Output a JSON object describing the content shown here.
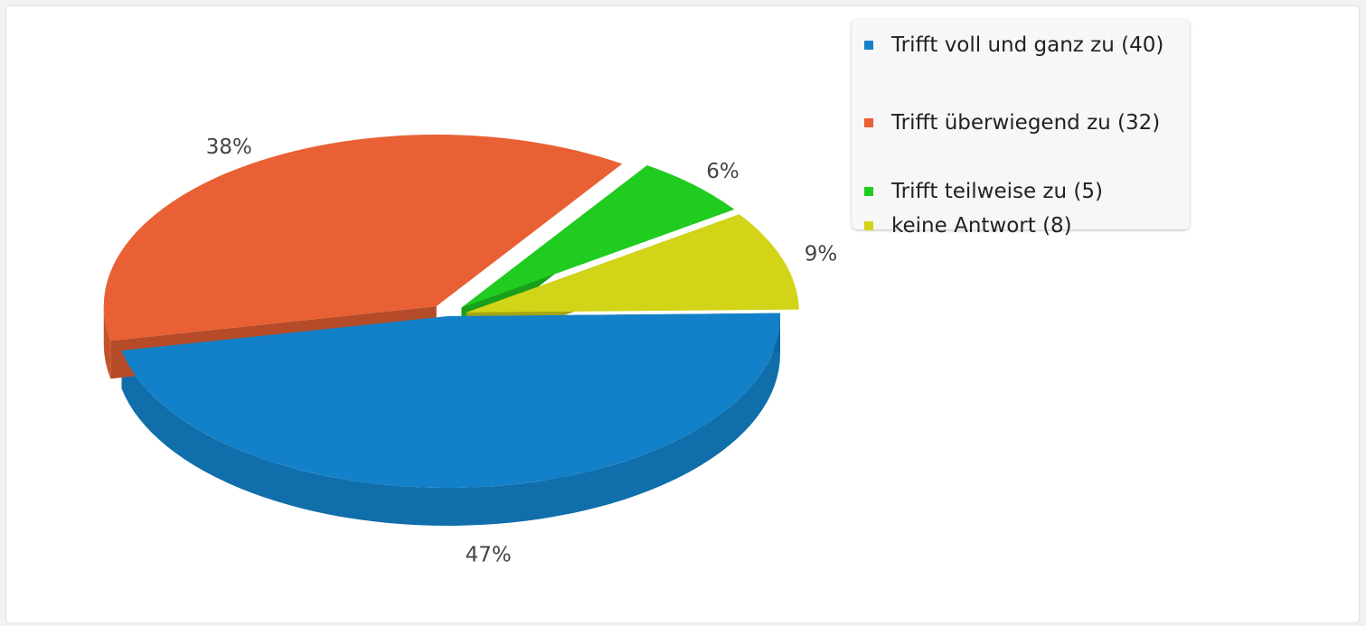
{
  "chart_data": {
    "type": "pie",
    "title": "",
    "three_d": true,
    "exploded": true,
    "legend_position": "top-right",
    "slices": [
      {
        "label": "Trifft voll und ganz zu (40)",
        "value": 40,
        "percent_label": "47%",
        "color": "#1381c9"
      },
      {
        "label": "Trifft überwiegend zu (32)",
        "value": 32,
        "percent_label": "38%",
        "color": "#e86033"
      },
      {
        "label": "Trifft teilweise zu (5)",
        "value": 5,
        "percent_label": "6%",
        "color": "#20cc20"
      },
      {
        "label": "keine Antwort (8)",
        "value": 8,
        "percent_label": "9%",
        "color": "#d2d418"
      }
    ]
  }
}
